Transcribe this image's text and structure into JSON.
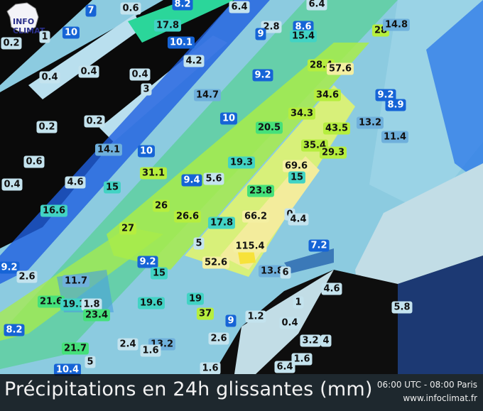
{
  "logo": {
    "text": "INFO CLIMAT"
  },
  "legend": {
    "title": "Précipitations en 24h glissantes (mm)",
    "time": "06:00 UTC - 08:00 Paris",
    "site": "www.infoclimat.fr"
  },
  "colors": {
    "low": "#c4e3ee",
    "mid": "#6fb0dc",
    "blue": "#1664d6",
    "cyan": "#42d3c4",
    "green": "#45e07a",
    "lime": "#b6ee3e",
    "yellow": "#f4efa2",
    "bar": "#0a0c0e"
  },
  "stations": [
    "7",
    "0.6",
    "8.2",
    "6.4",
    "6.4",
    "17.8",
    "10",
    "1",
    "0.2",
    "10.1",
    "2.8",
    "9",
    "8.6",
    "15.4",
    "28",
    "14.8",
    "4.2",
    "0.4",
    "0.4",
    "0.4",
    "3",
    "14.7",
    "9.2",
    "28.4",
    "57.6",
    "34.6",
    "9.2",
    "8.9",
    "10",
    "34.3",
    "20.5",
    "43.5",
    "13.2",
    "11.4",
    "0.2",
    "0.2",
    "14.1",
    "10",
    "35.4",
    "29.3",
    "19.3",
    "0.6",
    "31.1",
    "9.4",
    "5.6",
    "69.6",
    "15",
    "4.6",
    "15",
    "0.4",
    "23.8",
    "16.6",
    "26",
    "26.6",
    "17.8",
    "66.2",
    "0",
    "4.4",
    "27",
    "5",
    "52.6",
    "115.4",
    "7.2",
    "9.2",
    "2.6",
    "9.2",
    "15",
    "13.8",
    "6",
    "11.7",
    "21.6",
    "19.1",
    "1.8",
    "23.4",
    "19.6",
    "19",
    "37",
    "4.6",
    "1",
    "1.2",
    "0.4",
    "5.8",
    "8.2",
    "9",
    "2.4",
    "13.2",
    "2.6",
    "3.2",
    "4",
    "1.6",
    "21.7",
    "5",
    "10.4",
    "1.6",
    "1.6",
    "6.4"
  ]
}
